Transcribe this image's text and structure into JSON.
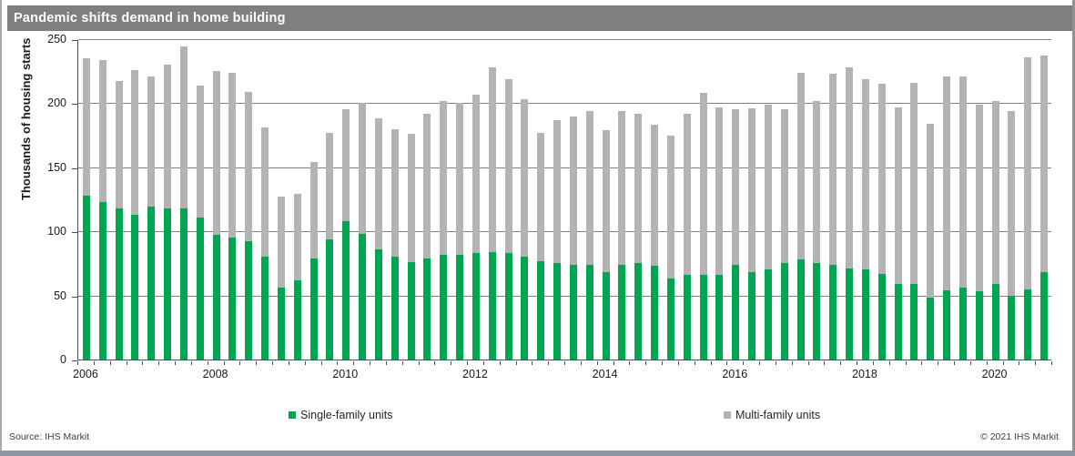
{
  "title_bar": {
    "title": "Pandemic shifts demand in home building"
  },
  "footer": {
    "source": "Source:  IHS Markit",
    "copyright": "© 2021  IHS Markit"
  },
  "colors": {
    "title_bar_bg": "#7f7f7f",
    "title_text": "#ffffff",
    "single_family_green": "#00A551",
    "multi_family_gray": "#B3B3B3",
    "gridline": "#7f7f7f",
    "frame_bottom": "#8d97a1"
  },
  "legend": {
    "items": [
      {
        "label": "Single-family units",
        "color": "#00A551"
      },
      {
        "label": "Multi-family units",
        "color": "#B3B3B3"
      }
    ]
  },
  "chart_data": {
    "type": "bar",
    "stacked": true,
    "title": "Pandemic shifts demand in home building",
    "xlabel": "",
    "ylabel": "Thousands of housing starts",
    "ylim": [
      0,
      250
    ],
    "yticks": [
      0,
      50,
      100,
      150,
      200,
      250
    ],
    "grid": true,
    "legend_position": "bottom",
    "x_tick_labels": [
      "2006",
      "2008",
      "2010",
      "2012",
      "2014",
      "2016",
      "2018",
      "2020"
    ],
    "x_label_bar_positions": [
      0,
      8,
      16,
      24,
      32,
      40,
      48,
      56
    ],
    "categories": [
      "2006 Q1",
      "2006 Q2",
      "2006 Q3",
      "2006 Q4",
      "2007 Q1",
      "2007 Q2",
      "2007 Q3",
      "2007 Q4",
      "2008 Q1",
      "2008 Q2",
      "2008 Q3",
      "2008 Q4",
      "2009 Q1",
      "2009 Q2",
      "2009 Q3",
      "2009 Q4",
      "2010 Q1",
      "2010 Q2",
      "2010 Q3",
      "2010 Q4",
      "2011 Q1",
      "2011 Q2",
      "2011 Q3",
      "2011 Q4",
      "2012 Q1",
      "2012 Q2",
      "2012 Q3",
      "2012 Q4",
      "2013 Q1",
      "2013 Q2",
      "2013 Q3",
      "2013 Q4",
      "2014 Q1",
      "2014 Q2",
      "2014 Q3",
      "2014 Q4",
      "2015 Q1",
      "2015 Q2",
      "2015 Q3",
      "2015 Q4",
      "2016 Q1",
      "2016 Q2",
      "2016 Q3",
      "2016 Q4",
      "2017 Q1",
      "2017 Q2",
      "2017 Q3",
      "2017 Q4",
      "2018 Q1",
      "2018 Q2",
      "2018 Q3",
      "2018 Q4",
      "2019 Q1",
      "2019 Q2",
      "2019 Q3",
      "2019 Q4",
      "2020 Q1",
      "2020 Q2",
      "2020 Q3",
      "2020 Q4"
    ],
    "series": [
      {
        "name": "Single-family units",
        "color": "#00A551",
        "values": [
          128,
          123,
          118,
          113,
          119,
          118,
          118,
          111,
          97,
          95,
          92,
          80,
          56,
          62,
          79,
          94,
          108,
          98,
          86,
          80,
          76,
          79,
          82,
          82,
          83,
          84,
          83,
          80,
          77,
          75,
          74,
          74,
          68,
          74,
          75,
          73,
          63,
          66,
          66,
          66,
          74,
          68,
          70,
          75,
          78,
          75,
          74,
          71,
          70,
          67,
          59,
          59,
          48,
          54,
          56,
          53,
          59,
          50,
          55,
          68
        ]
      },
      {
        "name": "Multi-family units",
        "color": "#B3B3B3",
        "values": [
          107,
          111,
          99,
          113,
          102,
          112,
          126,
          103,
          128,
          129,
          117,
          101,
          71,
          67,
          75,
          83,
          87,
          102,
          102,
          100,
          100,
          113,
          120,
          118,
          124,
          144,
          136,
          123,
          100,
          112,
          116,
          120,
          111,
          120,
          117,
          110,
          112,
          126,
          142,
          131,
          121,
          128,
          129,
          120,
          146,
          127,
          149,
          157,
          149,
          148,
          138,
          157,
          136,
          167,
          165,
          146,
          143,
          144,
          181,
          169
        ]
      }
    ]
  }
}
